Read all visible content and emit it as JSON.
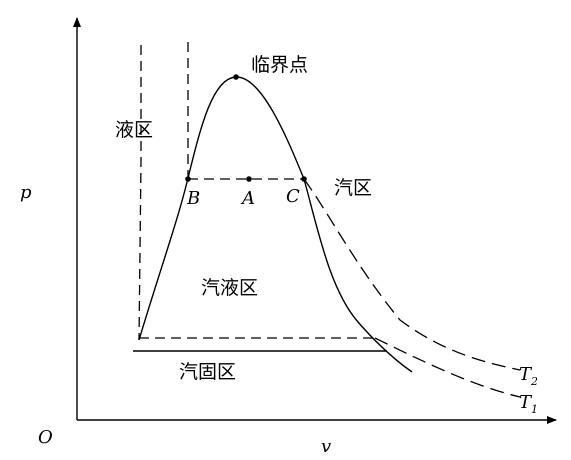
{
  "axes": {
    "y_label": "p",
    "x_label": "v",
    "origin_label": "O"
  },
  "points": {
    "critical_point": "临界点",
    "A": "A",
    "B": "B",
    "C": "C"
  },
  "regions": {
    "liquid": "液区",
    "vapor": "汽区",
    "vapor_liquid": "汽液区",
    "vapor_solid": "汽固区"
  },
  "isotherms": [
    {
      "name": "T",
      "sub": "2"
    },
    {
      "name": "T",
      "sub": "1"
    }
  ]
}
